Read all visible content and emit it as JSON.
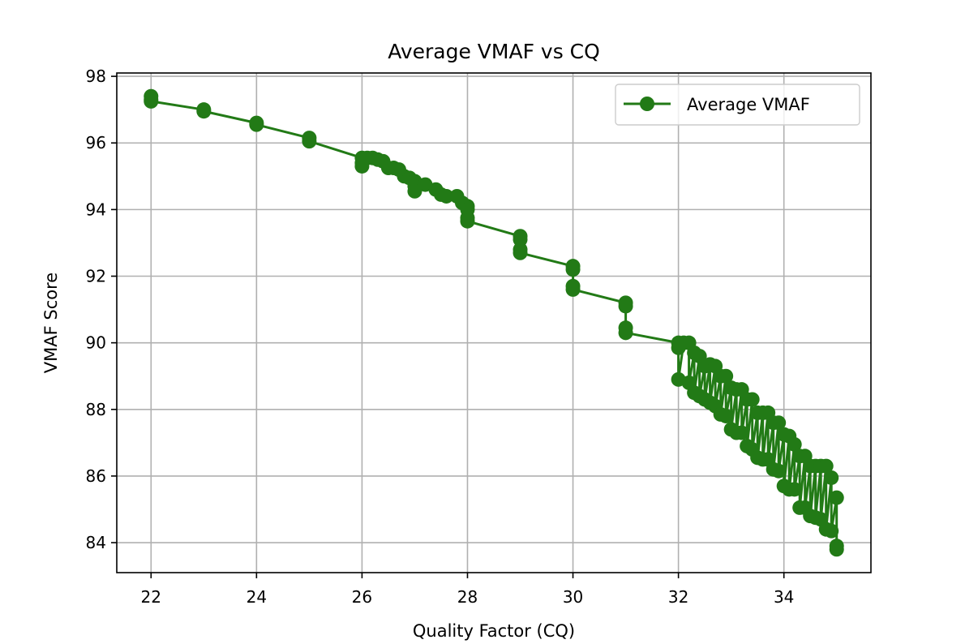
{
  "chart_data": {
    "type": "line",
    "title": "Average VMAF vs CQ",
    "xlabel": "Quality Factor (CQ)",
    "ylabel": "VMAF Score",
    "xlim": [
      21.35,
      35.65
    ],
    "ylim": [
      83.1,
      98.1
    ],
    "xticks": [
      22,
      24,
      26,
      28,
      30,
      32,
      34
    ],
    "yticks": [
      84,
      86,
      88,
      90,
      92,
      94,
      96,
      98
    ],
    "grid": true,
    "legend": {
      "placement": "top-right"
    },
    "color": "#227a16",
    "series": [
      {
        "name": "Average VMAF",
        "x": [
          22,
          22,
          22,
          23,
          23,
          24,
          24,
          25,
          25,
          26,
          26,
          26,
          26.1,
          26.2,
          26.3,
          26.4,
          26.5,
          26.6,
          26.7,
          26.8,
          26.9,
          27,
          27,
          27,
          27.2,
          27.4,
          27.5,
          27.6,
          27.8,
          27.9,
          28,
          28,
          28,
          28,
          29,
          29,
          29,
          29,
          30,
          30,
          30,
          30,
          31,
          31,
          31,
          31,
          32,
          32,
          32,
          32.1,
          32.2,
          32.2,
          32.3,
          32.3,
          32.4,
          32.4,
          32.5,
          32.5,
          32.6,
          32.6,
          32.7,
          32.7,
          32.8,
          32.8,
          32.9,
          32.9,
          33,
          33,
          33.1,
          33.1,
          33.2,
          33.2,
          33.3,
          33.3,
          33.4,
          33.4,
          33.5,
          33.5,
          33.6,
          33.6,
          33.7,
          33.7,
          33.8,
          33.8,
          33.9,
          33.9,
          34,
          34,
          34.1,
          34.1,
          34.2,
          34.2,
          34.3,
          34.3,
          34.4,
          34.4,
          34.5,
          34.5,
          34.6,
          34.6,
          34.7,
          34.7,
          34.8,
          34.8,
          34.9,
          34.9,
          35,
          35,
          35
        ],
        "y": [
          97.4,
          97.3,
          97.25,
          97.0,
          96.95,
          96.6,
          96.55,
          96.15,
          96.05,
          95.55,
          95.4,
          95.3,
          95.55,
          95.55,
          95.5,
          95.45,
          95.25,
          95.25,
          95.2,
          95.0,
          94.95,
          94.85,
          94.7,
          94.55,
          94.75,
          94.6,
          94.45,
          94.4,
          94.4,
          94.2,
          94.1,
          94.0,
          93.75,
          93.65,
          93.2,
          93.1,
          92.8,
          92.7,
          92.3,
          92.2,
          91.7,
          91.6,
          91.2,
          91.1,
          90.45,
          90.3,
          90.0,
          89.85,
          88.9,
          90.0,
          90.0,
          88.8,
          89.7,
          88.5,
          89.6,
          88.4,
          89.3,
          88.3,
          89.35,
          88.2,
          89.3,
          88.1,
          89.0,
          87.85,
          89.0,
          87.8,
          88.65,
          87.4,
          88.6,
          87.3,
          88.6,
          87.3,
          88.3,
          86.9,
          88.3,
          86.8,
          87.9,
          86.55,
          87.9,
          86.5,
          87.9,
          86.5,
          87.6,
          86.2,
          87.6,
          86.15,
          87.25,
          85.7,
          87.2,
          85.6,
          86.95,
          85.6,
          86.6,
          85.05,
          86.6,
          85.05,
          86.3,
          84.8,
          86.3,
          84.75,
          86.3,
          84.7,
          86.3,
          84.4,
          85.95,
          84.35,
          85.35,
          83.9,
          83.8
        ]
      }
    ]
  }
}
